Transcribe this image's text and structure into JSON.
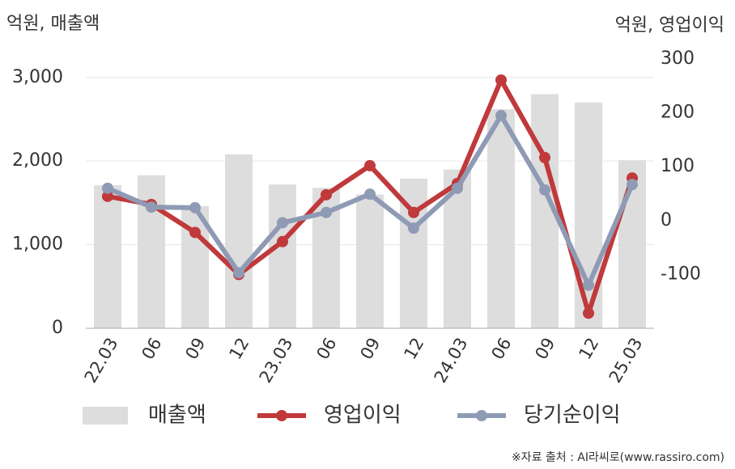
{
  "chart_data": {
    "type": "combo",
    "y_label": "억원, 매출액",
    "y2_label": "억원, 영업이익",
    "categories": [
      "22.03",
      "06",
      "09",
      "12",
      "23.03",
      "06",
      "09",
      "12",
      "24.03",
      "06",
      "09",
      "12",
      "25.03"
    ],
    "series": [
      {
        "name": "매출액",
        "type": "bar",
        "axis": "y",
        "color": "#dddddd",
        "values": [
          1710,
          1830,
          1460,
          2080,
          1720,
          1680,
          1600,
          1790,
          1900,
          2620,
          2800,
          2700,
          2010
        ]
      },
      {
        "name": "영업이익",
        "type": "line",
        "axis": "y2",
        "color": "#c0393b",
        "values": [
          45,
          30,
          -22,
          -100,
          -39,
          48,
          102,
          15,
          69,
          261,
          117,
          -172,
          79
        ]
      },
      {
        "name": "당기순이익",
        "type": "line",
        "axis": "y2",
        "color": "#8f9bb5",
        "values": [
          60,
          25,
          24,
          -97,
          -4,
          15,
          49,
          -14,
          60,
          195,
          57,
          -120,
          67
        ]
      }
    ],
    "ylim": [
      0,
      3220
    ],
    "yticks": [
      0,
      {
        "value": 1000,
        "label": "1,000"
      },
      {
        "value": 2000,
        "label": "2,000"
      },
      {
        "value": 3000,
        "label": "3,000"
      }
    ],
    "y2lim": [
      -200,
      300
    ],
    "y2ticks": [
      -100,
      0,
      100,
      200,
      300
    ],
    "grid": true,
    "source": "※자료 출처 : AI라씨로(www.rassiro.com)"
  }
}
